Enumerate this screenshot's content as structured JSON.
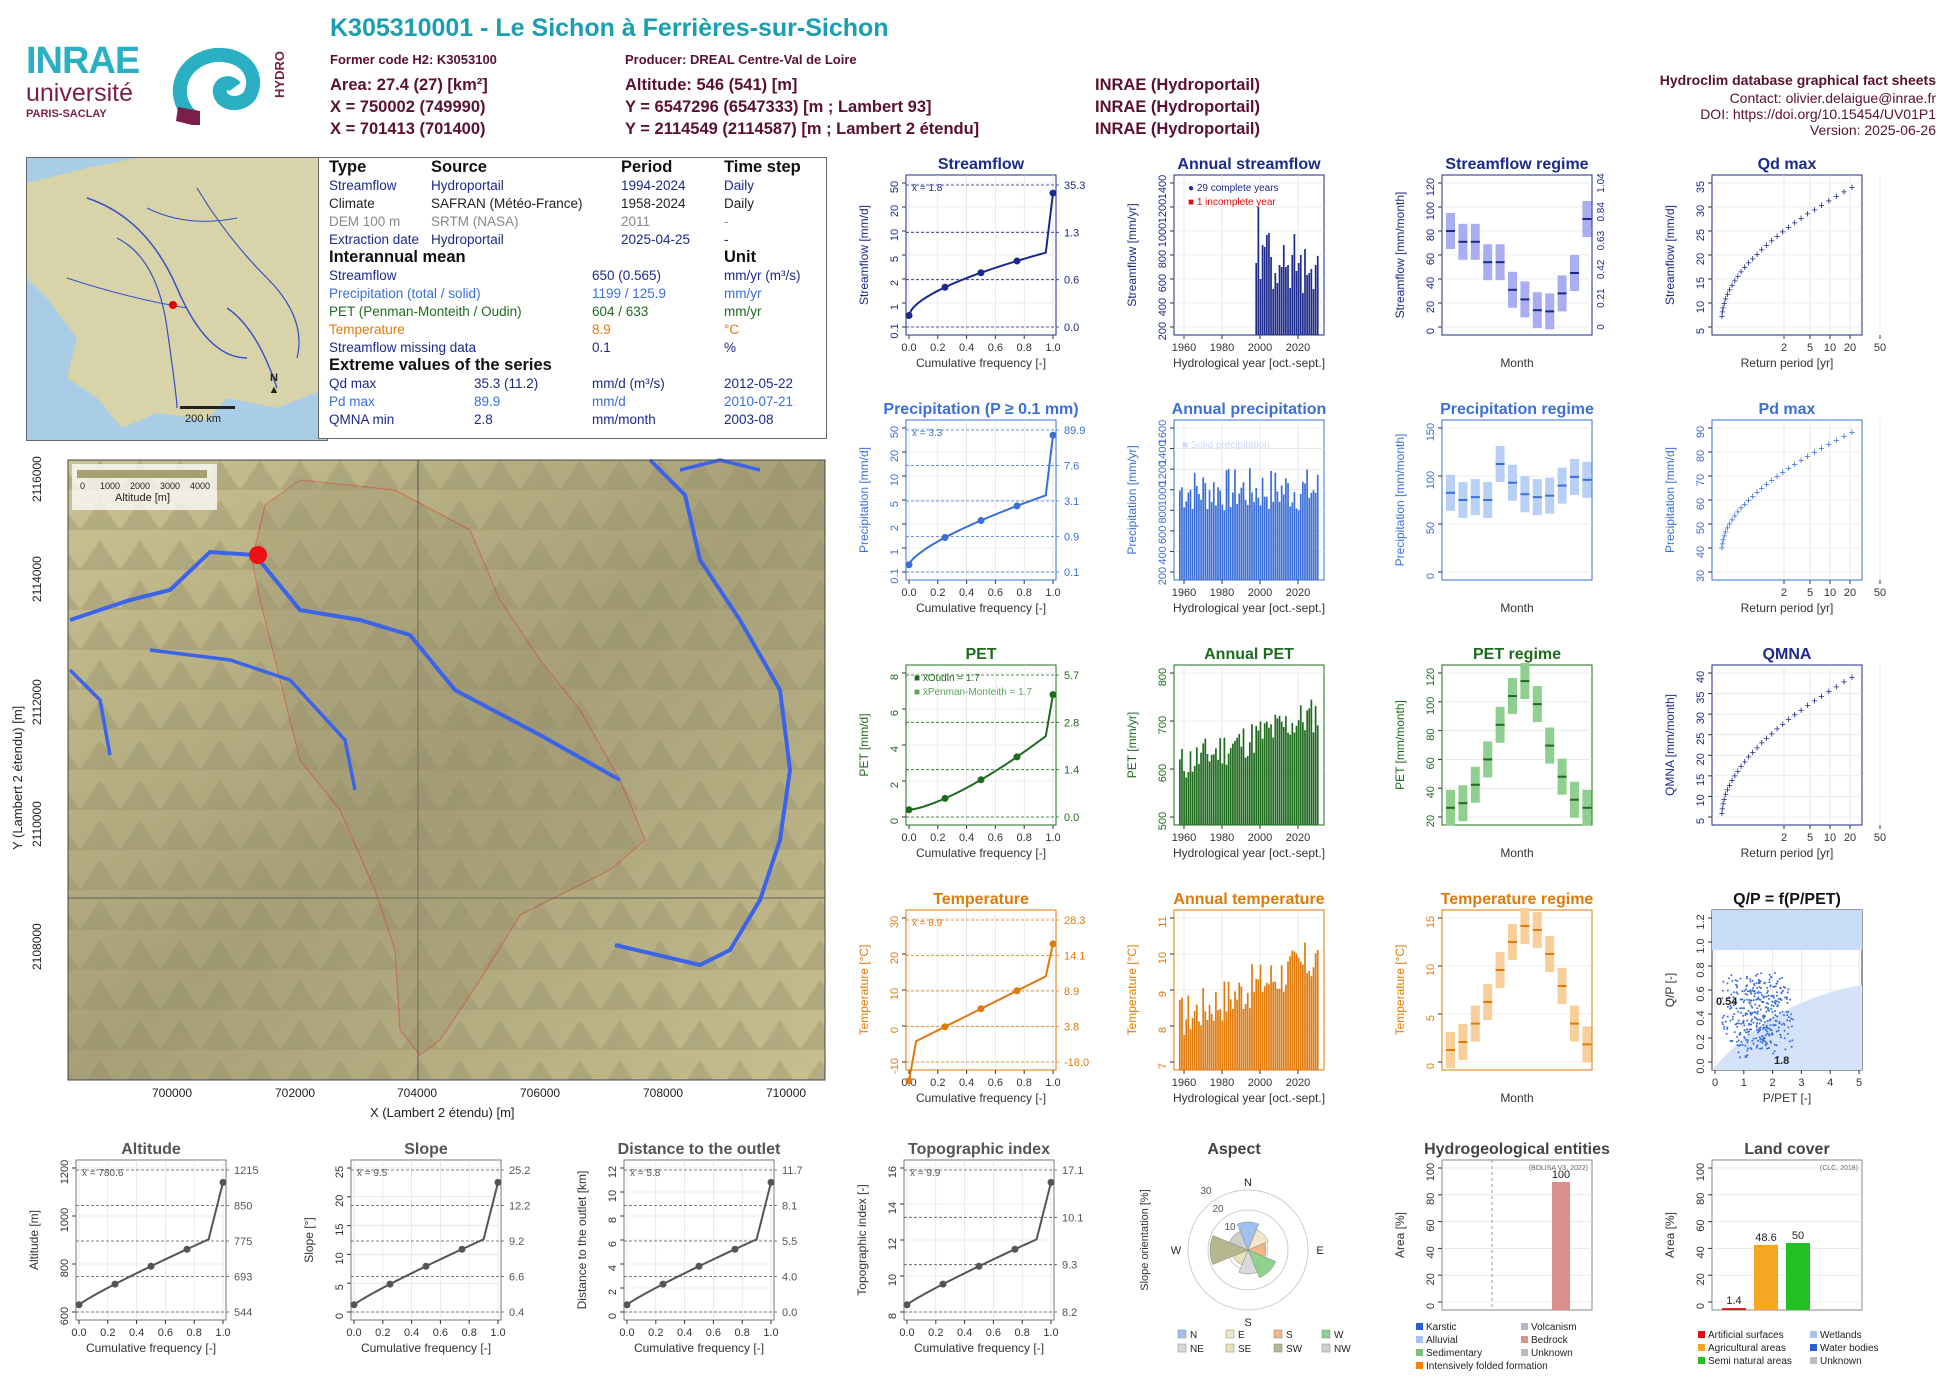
{
  "header": {
    "title": "K305310001 - Le Sichon à Ferrières-sur-Sichon",
    "former_code": "Former code H2: K3053100",
    "producer": "Producer: DREAL Centre-Val de Loire",
    "area": "Area: 27.4 (27) [km²]",
    "altitude": "Altitude: 546 (541) [m]",
    "x93": "X = 750002 (749990)",
    "y93": "Y = 6547296 (6547333) [m ; Lambert 93]",
    "x2": "X = 701413 (701400)",
    "y2": "Y = 2114549 (2114587) [m ; Lambert 2 étendu]",
    "src1": "INRAE (Hydroportail)",
    "src2": "INRAE (Hydroportail)",
    "src3": "INRAE (Hydroportail)",
    "db": "Hydroclim database graphical fact sheets",
    "contact": "Contact: olivier.delaigue@inrae.fr",
    "doi": "DOI: https://doi.org/10.15454/UV01P1",
    "version": "Version: 2025-06-26"
  },
  "logos": {
    "inrae": "INRAE",
    "universite": "université",
    "paris_saclay": "PARIS-SACLAY",
    "hydro": "HYDRO"
  },
  "colors": {
    "streamflow": "#1b2a8a",
    "precip": "#3a6fd8",
    "pet": "#1e6b1e",
    "temp": "#e07a0a",
    "title": "#1a9fb0",
    "dark": "#5a1030"
  },
  "info": {
    "h_type": "Type",
    "h_source": "Source",
    "h_period": "Period",
    "h_step": "Time step",
    "rows": [
      {
        "type": "Streamflow",
        "source": "Hydroportail",
        "period": "1994-2024",
        "step": "Daily"
      },
      {
        "type": "Climate",
        "source": "SAFRAN (Météo-France)",
        "period": "1958-2024",
        "step": "Daily"
      },
      {
        "type": "DEM 100 m",
        "source": "SRTM (NASA)",
        "period": "2011",
        "step": "-"
      },
      {
        "type": "Extraction date",
        "source": "Hydroportail",
        "period": "2025-04-25",
        "step": "-"
      }
    ],
    "h_mean": "Interannual mean",
    "h_unit": "Unit",
    "means": [
      {
        "label": "Streamflow",
        "value": "650 (0.565)",
        "unit": "mm/yr (m³/s)"
      },
      {
        "label": "Precipitation (total / solid)",
        "value": "1199 / 125.9",
        "unit": "mm/yr"
      },
      {
        "label": "PET (Penman-Monteith / Oudin)",
        "value": "604 / 633",
        "unit": "mm/yr"
      },
      {
        "label": "Temperature",
        "value": "8.9",
        "unit": "°C"
      },
      {
        "label": "Streamflow missing data",
        "value": "0.1",
        "unit": "%"
      }
    ],
    "h_extreme": "Extreme values of the series",
    "extremes": [
      {
        "label": "Qd max",
        "value": "35.3 (11.2)",
        "unit": "mm/d (m³/s)",
        "date": "2012-05-22"
      },
      {
        "label": "Pd max",
        "value": "89.9",
        "unit": "mm/d",
        "date": "2010-07-21"
      },
      {
        "label": "QMNA min",
        "value": "2.8",
        "unit": "mm/month",
        "date": "2003-08"
      }
    ]
  },
  "minimap": {
    "scale": "200 km",
    "north": "N"
  },
  "bigmap": {
    "legend_title": "Altitude [m]",
    "legend_ticks": [
      "0",
      "1000",
      "2000",
      "3000",
      "4000"
    ],
    "xticks": [
      "700000",
      "702000",
      "704000",
      "706000",
      "708000",
      "710000"
    ],
    "yticks": [
      "2108000",
      "2110000",
      "2112000",
      "2114000",
      "2116000"
    ],
    "xlabel": "X (Lambert 2 étendu) [m]",
    "ylabel": "Y (Lambert 2 étendu) [m]"
  },
  "chart_data": [
    {
      "id": "streamflow_cdf",
      "type": "line",
      "title": "Streamflow",
      "xlabel": "Cumulative frequency [-]",
      "ylabel": "Streamflow [mm/d]",
      "mean": "x̄ = 1.8",
      "y_scale": "log",
      "yticks": [
        "0.1",
        "1",
        "2",
        "5",
        "10",
        "20",
        "50"
      ],
      "xticks": [
        "0.0",
        "0.2",
        "0.4",
        "0.6",
        "0.8",
        "1.0"
      ],
      "right_labels": [
        "35.3",
        "1.3",
        "0.6",
        "0.0"
      ],
      "quartiles": [
        [
          0,
          0.0
        ],
        [
          0.25,
          0.6
        ],
        [
          0.5,
          1.3
        ],
        [
          0.75,
          2.5
        ],
        [
          1.0,
          35.3
        ]
      ]
    },
    {
      "id": "annual_streamflow",
      "type": "bar",
      "title": "Annual streamflow",
      "xlabel": "Hydrological year [oct.-sept.]",
      "ylabel": "Streamflow [mm/yr]",
      "xticks": [
        "1960",
        "1980",
        "2000",
        "2020"
      ],
      "yticks": [
        "200",
        "400",
        "600",
        "800",
        "1000",
        "1200",
        "1400"
      ],
      "legend": [
        "29 complete years",
        "1 incomplete year"
      ],
      "x": [
        1995,
        1996,
        1997,
        1998,
        1999,
        2000,
        2001,
        2002,
        2003,
        2004,
        2005,
        2006,
        2007,
        2008,
        2009,
        2010,
        2011,
        2012,
        2013,
        2014,
        2015,
        2016,
        2017,
        2018,
        2019,
        2020,
        2021,
        2022,
        2023,
        2024
      ],
      "values": [
        720,
        1280,
        560,
        900,
        880,
        1000,
        1020,
        780,
        460,
        620,
        520,
        700,
        680,
        900,
        680,
        700,
        470,
        800,
        1010,
        640,
        720,
        800,
        420,
        860,
        600,
        620,
        660,
        460,
        700,
        790
      ]
    },
    {
      "id": "streamflow_regime",
      "type": "box",
      "title": "Streamflow regime",
      "xlabel": "Month",
      "ylabel": "Streamflow [mm/month]",
      "right_label": "Streamflow [m³/s]",
      "categories": [
        "Jan",
        "Mar",
        "May",
        "Jul",
        "Sep",
        "Nov"
      ],
      "yticks": [
        "0",
        "20",
        "40",
        "60",
        "80",
        "100",
        "120"
      ],
      "right_ticks": [
        "0",
        "0.21",
        "0.42",
        "0.63",
        "0.84",
        "1.04"
      ],
      "months": [
        [
          60,
          100,
          80
        ],
        [
          55,
          90,
          71
        ],
        [
          55,
          90,
          71
        ],
        [
          40,
          80,
          54
        ],
        [
          40,
          75,
          54
        ],
        [
          20,
          45,
          31
        ],
        [
          15,
          35,
          23
        ],
        [
          10,
          28,
          14
        ],
        [
          8,
          28,
          13
        ],
        [
          15,
          50,
          28
        ],
        [
          25,
          75,
          45
        ],
        [
          50,
          120,
          90
        ]
      ]
    },
    {
      "id": "qd_max",
      "type": "scatter",
      "title": "Qd max",
      "xlabel": "Return period [yr]",
      "ylabel": "Streamflow [mm/d]",
      "xticks": [
        "2",
        "5",
        "10",
        "20",
        "50"
      ],
      "yticks": [
        "5",
        "10",
        "15",
        "20",
        "25",
        "30",
        "35"
      ]
    },
    {
      "id": "precip_cdf",
      "type": "line",
      "title": "Precipitation (P ≥ 0.1 mm)",
      "xlabel": "Cumulative frequency [-]",
      "ylabel": "Precipitation [mm/d]",
      "mean": "x̄ = 3.3",
      "y_scale": "log",
      "yticks": [
        "0.1",
        "1",
        "2",
        "5",
        "10",
        "20",
        "50"
      ],
      "xticks": [
        "0.0",
        "0.2",
        "0.4",
        "0.6",
        "0.8",
        "1.0"
      ],
      "right_labels": [
        "89.9",
        "7.6",
        "3.1",
        "0.9",
        "0.1"
      ]
    },
    {
      "id": "annual_precip",
      "type": "bar",
      "title": "Annual precipitation",
      "xlabel": "Hydrological year [oct.-sept.]",
      "ylabel": "Precipitation [mm/yr]",
      "xticks": [
        "1960",
        "1980",
        "2000",
        "2020"
      ],
      "yticks": [
        "200",
        "400",
        "600",
        "800",
        "1000",
        "1200",
        "1400",
        "1600"
      ],
      "legend": [
        "Total precipitation",
        "Solid precipitation"
      ]
    },
    {
      "id": "precip_regime",
      "type": "box",
      "title": "Precipitation regime",
      "xlabel": "Month",
      "ylabel": "Precipitation [mm/month]",
      "categories": [
        "Jan",
        "Mar",
        "May",
        "Jul",
        "Sep",
        "Nov"
      ],
      "yticks": [
        "0",
        "50",
        "100",
        "150"
      ]
    },
    {
      "id": "pd_max",
      "type": "scatter",
      "title": "Pd max",
      "xlabel": "Return period [yr]",
      "ylabel": "Precipitation [mm/d]",
      "xticks": [
        "2",
        "5",
        "10",
        "20",
        "50"
      ],
      "yticks": [
        "30",
        "40",
        "50",
        "60",
        "70",
        "80",
        "90"
      ]
    },
    {
      "id": "pet_cdf",
      "type": "line",
      "title": "PET",
      "xlabel": "Cumulative frequency [-]",
      "ylabel": "PET [mm/d]",
      "legend": [
        "x̄Oudin = 1.7",
        "x̄Penman-Monteith = 1.7"
      ],
      "yticks": [
        "0",
        "2",
        "4",
        "6",
        "8"
      ],
      "xticks": [
        "0.0",
        "0.2",
        "0.4",
        "0.6",
        "0.8",
        "1.0"
      ],
      "right_labels": [
        "5.7",
        "2.8",
        "1.4",
        "0.0"
      ]
    },
    {
      "id": "annual_pet",
      "type": "bar",
      "title": "Annual PET",
      "xlabel": "Hydrological year [oct.-sept.]",
      "ylabel": "PET [mm/yr]",
      "xticks": [
        "1960",
        "1980",
        "2000",
        "2020"
      ],
      "yticks": [
        "500",
        "600",
        "700",
        "800"
      ]
    },
    {
      "id": "pet_regime",
      "type": "box",
      "title": "PET regime",
      "xlabel": "Month",
      "ylabel": "PET [mm/month]",
      "categories": [
        "Jan",
        "Mar",
        "May",
        "Jul",
        "Sep",
        "Nov"
      ],
      "yticks": [
        "20",
        "40",
        "60",
        "80",
        "100",
        "120"
      ],
      "months": [
        8,
        12,
        28,
        50,
        80,
        105,
        118,
        98,
        62,
        35,
        15,
        8
      ]
    },
    {
      "id": "qmna",
      "type": "scatter",
      "title": "QMNA",
      "xlabel": "Return period [yr]",
      "ylabel": "QMNA [mm/month]",
      "xticks": [
        "2",
        "5",
        "10",
        "20",
        "50"
      ],
      "yticks": [
        "5",
        "10",
        "15",
        "20",
        "25",
        "30",
        "35",
        "40"
      ]
    },
    {
      "id": "temp_cdf",
      "type": "line",
      "title": "Temperature",
      "xlabel": "Cumulative frequency [-]",
      "ylabel": "Temperature [°C]",
      "mean": "x̄ = 8.9",
      "yticks": [
        "-10",
        "0",
        "10",
        "20",
        "30"
      ],
      "xticks": [
        "0.0",
        "0.2",
        "0.4",
        "0.6",
        "0.8",
        "1.0"
      ],
      "right_labels": [
        "28.3",
        "14.1",
        "8.9",
        "3.8",
        "-18.0"
      ]
    },
    {
      "id": "annual_temp",
      "type": "bar",
      "title": "Annual temperature",
      "xlabel": "Hydrological year [oct.-sept.]",
      "ylabel": "Temperature [°C]",
      "xticks": [
        "1960",
        "1980",
        "2000",
        "2020"
      ],
      "yticks": [
        "7",
        "8",
        "9",
        "10",
        "11"
      ]
    },
    {
      "id": "temp_regime",
      "type": "box",
      "title": "Temperature regime",
      "xlabel": "Month",
      "ylabel": "Temperature [°C]",
      "categories": [
        "Jan",
        "Mar",
        "May",
        "Jul",
        "Sep",
        "Nov"
      ],
      "yticks": [
        "0",
        "5",
        "10",
        "15"
      ],
      "months": [
        1.5,
        2.5,
        4.8,
        7.5,
        11.5,
        15,
        17,
        16.5,
        13.5,
        9.5,
        4.8,
        2.2
      ]
    },
    {
      "id": "qp_ppet",
      "type": "scatter",
      "title": "Q/P = f(P/PET)",
      "xlabel": "P/PET [-]",
      "ylabel": "Q/P [-]",
      "xticks": [
        "0",
        "1",
        "2",
        "3",
        "4",
        "5"
      ],
      "yticks": [
        "0.0",
        "0.2",
        "0.4",
        "0.6",
        "0.8",
        "1.0",
        "1.2"
      ],
      "annotations": [
        "0.54",
        "1.8"
      ]
    },
    {
      "id": "altitude_cdf",
      "type": "line",
      "title": "Altitude",
      "xlabel": "Cumulative frequency [-]",
      "ylabel": "Altitude [m]",
      "mean": "x̄ = 780.6",
      "yticks": [
        "600",
        "800",
        "1000",
        "1200"
      ],
      "xticks": [
        "0.0",
        "0.2",
        "0.4",
        "0.6",
        "0.8",
        "1.0"
      ],
      "right_labels": [
        "1215",
        "850",
        "775",
        "693",
        "544"
      ]
    },
    {
      "id": "slope_cdf",
      "type": "line",
      "title": "Slope",
      "xlabel": "Cumulative frequency [-]",
      "ylabel": "Slope [°]",
      "mean": "x̄ = 9.5",
      "yticks": [
        "0",
        "5",
        "10",
        "15",
        "20",
        "25"
      ],
      "xticks": [
        "0.0",
        "0.2",
        "0.4",
        "0.6",
        "0.8",
        "1.0"
      ],
      "right_labels": [
        "25.2",
        "12.2",
        "9.2",
        "6.6",
        "0.4"
      ]
    },
    {
      "id": "distance_cdf",
      "type": "line",
      "title": "Distance to the outlet",
      "xlabel": "Cumulative frequency [-]",
      "ylabel": "Distance to the outlet [km]",
      "mean": "x̄ = 5.8",
      "yticks": [
        "0",
        "2",
        "4",
        "6",
        "8",
        "10",
        "12"
      ],
      "xticks": [
        "0.0",
        "0.2",
        "0.4",
        "0.6",
        "0.8",
        "1.0"
      ],
      "right_labels": [
        "11.7",
        "8.1",
        "5.5",
        "4.0",
        "0.0"
      ]
    },
    {
      "id": "topo_cdf",
      "type": "line",
      "title": "Topographic index",
      "xlabel": "Cumulative frequency [-]",
      "ylabel": "Topographic index [-]",
      "mean": "x̄ = 9.9",
      "yticks": [
        "8",
        "10",
        "12",
        "14",
        "16"
      ],
      "xticks": [
        "0.0",
        "0.2",
        "0.4",
        "0.6",
        "0.8",
        "1.0"
      ],
      "right_labels": [
        "17.1",
        "10.1",
        "9.3",
        "8.2"
      ]
    },
    {
      "id": "aspect",
      "type": "pie",
      "title": "Aspect",
      "ylabel": "Slope orientation [%]",
      "rings": [
        "10",
        "20",
        "30"
      ],
      "directions": [
        "N",
        "E",
        "S",
        "W"
      ],
      "legend": [
        "N",
        "E",
        "S",
        "W",
        "NE",
        "SE",
        "SW",
        "NW"
      ]
    },
    {
      "id": "hydrogeo",
      "type": "bar",
      "title": "Hydrogeological entities",
      "ylabel": "Area [%]",
      "source": "(BDLISA V3, 2022)",
      "yticks": [
        "0",
        "20",
        "40",
        "60",
        "80",
        "100"
      ],
      "bar_value": "100",
      "legend": [
        "Karstic",
        "Volcanism",
        "Alluvial",
        "Bedrock",
        "Sedimentary",
        "Unknown",
        "Intensively folded formation"
      ]
    },
    {
      "id": "landcover",
      "type": "bar",
      "title": "Land cover",
      "ylabel": "Area [%]",
      "source": "(CLC, 2018)",
      "yticks": [
        "0",
        "20",
        "40",
        "60",
        "80",
        "100"
      ],
      "categories": [
        "Artificial surfaces",
        "Agricultural areas",
        "Semi natural areas"
      ],
      "values": [
        1.4,
        48.6,
        50
      ],
      "value_labels": [
        "1.4",
        "48.6",
        "50"
      ],
      "legend": [
        "Artificial surfaces",
        "Wetlands",
        "Agricultural areas",
        "Water bodies",
        "Semi natural areas",
        "Unknown"
      ]
    }
  ]
}
